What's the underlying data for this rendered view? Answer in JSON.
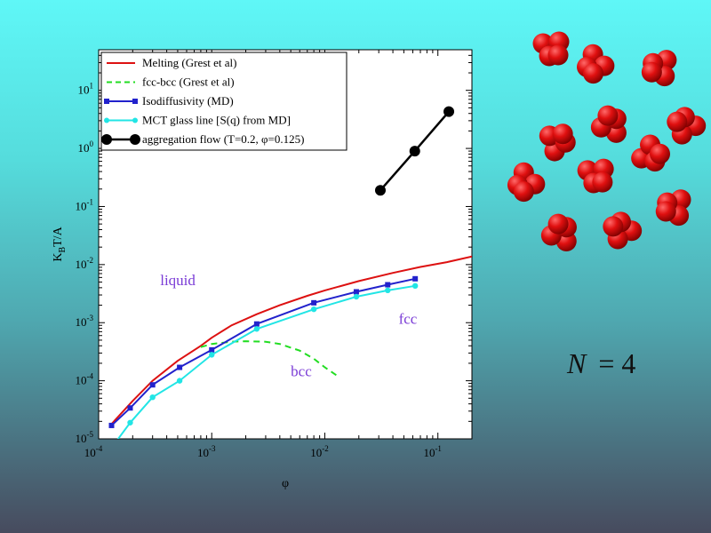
{
  "chart_data": {
    "type": "line",
    "xlabel": "φ",
    "ylabel": "K_B T/A",
    "xscale": "log",
    "yscale": "log",
    "xlim": [
      0.0001,
      0.2
    ],
    "ylim": [
      1e-05,
      50
    ],
    "xticks": [
      {
        "value": 0.0001,
        "base": "10",
        "exp": "-4"
      },
      {
        "value": 0.001,
        "base": "10",
        "exp": "-3"
      },
      {
        "value": 0.01,
        "base": "10",
        "exp": "-2"
      },
      {
        "value": 0.1,
        "base": "10",
        "exp": "-1"
      }
    ],
    "yticks": [
      {
        "value": 1e-05,
        "base": "10",
        "exp": "-5"
      },
      {
        "value": 0.0001,
        "base": "10",
        "exp": "-4"
      },
      {
        "value": 0.001,
        "base": "10",
        "exp": "-3"
      },
      {
        "value": 0.01,
        "base": "10",
        "exp": "-2"
      },
      {
        "value": 0.1,
        "base": "10",
        "exp": "-1"
      },
      {
        "value": 1,
        "base": "10",
        "exp": "0"
      },
      {
        "value": 10,
        "base": "10",
        "exp": "1"
      }
    ],
    "legend_position": "top-left",
    "grid": false,
    "series": [
      {
        "name": "Melting  (Grest et al)",
        "color": "#dd1111",
        "style": "solid",
        "markers": false,
        "points": [
          [
            0.00013,
            1.8e-05
          ],
          [
            0.0002,
            4.5e-05
          ],
          [
            0.0003,
            0.0001
          ],
          [
            0.0005,
            0.00022
          ],
          [
            0.0008,
            0.0004
          ],
          [
            0.001,
            0.00055
          ],
          [
            0.0015,
            0.0009
          ],
          [
            0.0025,
            0.0014
          ],
          [
            0.004,
            0.002
          ],
          [
            0.007,
            0.0029
          ],
          [
            0.01,
            0.0036
          ],
          [
            0.02,
            0.0052
          ],
          [
            0.04,
            0.0072
          ],
          [
            0.07,
            0.0091
          ],
          [
            0.12,
            0.011
          ],
          [
            0.2,
            0.0138
          ]
        ]
      },
      {
        "name": "fcc-bcc (Grest et al)",
        "color": "#22dd22",
        "style": "dashed",
        "markers": false,
        "points": [
          [
            0.0008,
            0.00038
          ],
          [
            0.001,
            0.00043
          ],
          [
            0.0015,
            0.00047
          ],
          [
            0.002,
            0.00048
          ],
          [
            0.003,
            0.00047
          ],
          [
            0.004,
            0.00043
          ],
          [
            0.006,
            0.00033
          ],
          [
            0.008,
            0.00024
          ],
          [
            0.01,
            0.00017
          ],
          [
            0.013,
            0.00012
          ]
        ]
      },
      {
        "name": "Isodiffusivity (MD)",
        "color": "#2222cc",
        "style": "solid",
        "markers": "square",
        "points": [
          [
            0.00013,
            1.7e-05
          ],
          [
            0.00019,
            3.4e-05
          ],
          [
            0.0003,
            8.5e-05
          ],
          [
            0.00052,
            0.00017
          ],
          [
            0.001,
            0.00034
          ],
          [
            0.0025,
            0.00095
          ],
          [
            0.008,
            0.0022
          ],
          [
            0.019,
            0.0034
          ],
          [
            0.036,
            0.0045
          ],
          [
            0.063,
            0.0057
          ]
        ]
      },
      {
        "name": "MCT glass line [S(q) from MD]",
        "color": "#22e5e5",
        "style": "solid",
        "markers": "circle",
        "points": [
          [
            0.00013,
            7e-06
          ],
          [
            0.00019,
            1.9e-05
          ],
          [
            0.0003,
            5.2e-05
          ],
          [
            0.00052,
            0.0001
          ],
          [
            0.001,
            0.00028
          ],
          [
            0.0025,
            0.00078
          ],
          [
            0.008,
            0.0017
          ],
          [
            0.019,
            0.0028
          ],
          [
            0.036,
            0.0036
          ],
          [
            0.063,
            0.0043
          ]
        ]
      },
      {
        "name": "aggregation flow (T=0.2, φ=0.125)",
        "color": "#000000",
        "style": "solid",
        "markers": "big-circle",
        "points": [
          [
            0.031,
            0.19
          ],
          [
            0.0625,
            0.9
          ],
          [
            0.125,
            4.3
          ]
        ]
      }
    ],
    "annotations": [
      {
        "text": "liquid",
        "x": 0.00035,
        "y": 0.0044
      },
      {
        "text": "fcc",
        "x": 0.045,
        "y": 0.00095
      },
      {
        "text": "bcc",
        "x": 0.005,
        "y": 0.00012
      }
    ]
  },
  "equation": {
    "lhs": "N",
    "rhs": "= 4"
  },
  "colors": {
    "particle": "#e01010",
    "particle_dark": "#8a0000"
  }
}
